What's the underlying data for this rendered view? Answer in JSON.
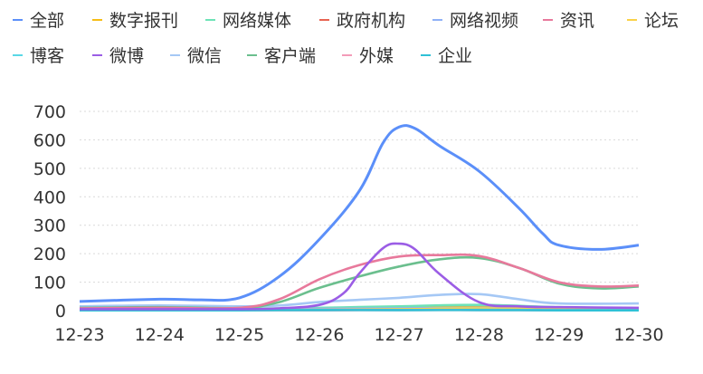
{
  "chart_data": {
    "type": "line",
    "categories": [
      "12-23",
      "12-24",
      "12-25",
      "12-26",
      "12-27",
      "12-28",
      "12-29",
      "12-30"
    ],
    "ylim": [
      0,
      700
    ],
    "yticks": [
      0,
      100,
      200,
      300,
      400,
      500,
      600,
      700
    ],
    "grid": true,
    "legend_position": "top",
    "series": [
      {
        "name": "全部",
        "color": "#5b8ff9",
        "x": [
          0,
          1,
          1.5,
          2,
          2.5,
          3,
          3.5,
          3.8,
          4,
          4.2,
          4.5,
          5,
          5.5,
          5.8,
          6,
          6.5,
          7
        ],
        "values": [
          32,
          40,
          38,
          45,
          120,
          250,
          420,
          590,
          645,
          640,
          580,
          490,
          360,
          270,
          230,
          215,
          230
        ]
      },
      {
        "name": "数字报刊",
        "color": "#f6bd16",
        "x": [
          0,
          1,
          2,
          3,
          4,
          5,
          6,
          7
        ],
        "values": [
          2,
          3,
          3,
          5,
          10,
          15,
          10,
          5
        ]
      },
      {
        "name": "网络媒体",
        "color": "#6ee3b7",
        "x": [
          0,
          1,
          2,
          3,
          4,
          5,
          6,
          7
        ],
        "values": [
          5,
          5,
          6,
          10,
          15,
          20,
          12,
          8
        ]
      },
      {
        "name": "政府机构",
        "color": "#e86452",
        "x": [
          0,
          1,
          2,
          3,
          4,
          5,
          6,
          7
        ],
        "values": [
          1,
          1,
          1,
          2,
          3,
          3,
          2,
          1
        ]
      },
      {
        "name": "网络视频",
        "color": "#8fb1f7",
        "x": [
          0,
          1,
          2,
          3,
          4,
          5,
          6,
          7
        ],
        "values": [
          3,
          3,
          4,
          6,
          8,
          10,
          8,
          6
        ]
      },
      {
        "name": "资讯",
        "color": "#e8799c",
        "x": [
          0,
          1,
          2,
          2.5,
          3,
          3.5,
          4,
          4.5,
          5,
          5.5,
          6,
          6.5,
          7
        ],
        "values": [
          8,
          10,
          10,
          40,
          110,
          160,
          190,
          195,
          192,
          150,
          100,
          85,
          88
        ]
      },
      {
        "name": "论坛",
        "color": "#fad248",
        "x": [
          0,
          1,
          2,
          3,
          4,
          5,
          6,
          7
        ],
        "values": [
          2,
          2,
          2,
          3,
          5,
          8,
          6,
          4
        ]
      },
      {
        "name": "博客",
        "color": "#5ad8e6",
        "x": [
          0,
          1,
          2,
          3,
          4,
          5,
          6,
          7
        ],
        "values": [
          1,
          1,
          1,
          2,
          2,
          3,
          2,
          2
        ]
      },
      {
        "name": "微博",
        "color": "#9b5de5",
        "x": [
          0,
          1,
          2,
          2.5,
          3,
          3.3,
          3.5,
          3.8,
          4,
          4.2,
          4.5,
          5,
          5.5,
          6,
          7
        ],
        "values": [
          5,
          5,
          5,
          8,
          20,
          60,
          130,
          220,
          235,
          215,
          130,
          30,
          15,
          12,
          10
        ]
      },
      {
        "name": "微信",
        "color": "#a5c8f5",
        "x": [
          0,
          1,
          2,
          2.5,
          3,
          3.5,
          4,
          4.5,
          5,
          5.5,
          6,
          7
        ],
        "values": [
          15,
          18,
          15,
          18,
          30,
          38,
          45,
          55,
          58,
          40,
          25,
          25
        ]
      },
      {
        "name": "客户端",
        "color": "#6bbf8e",
        "x": [
          0,
          1,
          2,
          2.5,
          3,
          3.5,
          4,
          4.5,
          5,
          5.5,
          6,
          6.5,
          7
        ],
        "values": [
          10,
          12,
          10,
          30,
          80,
          120,
          155,
          180,
          185,
          150,
          95,
          78,
          85
        ]
      },
      {
        "name": "外媒",
        "color": "#f39cb8",
        "x": [
          0,
          1,
          2,
          3,
          4,
          5,
          6,
          7
        ],
        "values": [
          1,
          1,
          1,
          1,
          2,
          2,
          1,
          1
        ]
      },
      {
        "name": "企业",
        "color": "#2fc1d6",
        "x": [
          0,
          1,
          2,
          3,
          4,
          5,
          6,
          7
        ],
        "values": [
          1,
          1,
          1,
          2,
          2,
          2,
          1,
          1
        ]
      }
    ]
  }
}
